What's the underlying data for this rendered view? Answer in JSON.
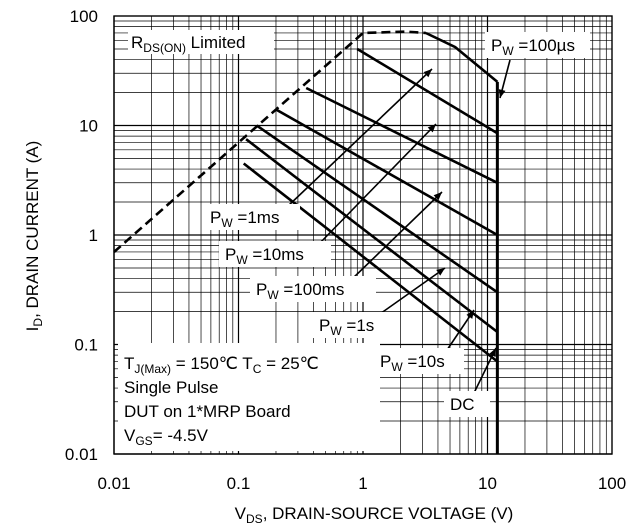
{
  "chart_data": {
    "type": "line",
    "xscale": "log",
    "yscale": "log",
    "xlim": [
      0.01,
      100
    ],
    "ylim": [
      0.01,
      100
    ],
    "grid": true,
    "xlabel": {
      "pre": "V",
      "sub": "DS",
      "post": ", DRAIN-SOURCE VOLTAGE (V)"
    },
    "ylabel": {
      "pre": "I",
      "sub": "D",
      "post": ", DRAIN CURRENT (A)"
    },
    "xticks": [
      {
        "v": 0.01,
        "label": "0.01"
      },
      {
        "v": 0.1,
        "label": "0.1"
      },
      {
        "v": 1,
        "label": "1"
      },
      {
        "v": 10,
        "label": "10"
      },
      {
        "v": 100,
        "label": "100"
      }
    ],
    "yticks": [
      {
        "v": 0.01,
        "label": "0.01"
      },
      {
        "v": 0.1,
        "label": "0.1"
      },
      {
        "v": 1,
        "label": "1"
      },
      {
        "v": 10,
        "label": "10"
      },
      {
        "v": 100,
        "label": "100"
      }
    ],
    "rds_limit": {
      "label_pre": "R",
      "label_sub": "DS(ON)",
      "label_post": " Limited",
      "points": [
        [
          0.01,
          0.7
        ],
        [
          1.0,
          70
        ],
        [
          2.2,
          72
        ],
        [
          3.2,
          70
        ]
      ]
    },
    "vmax": 12,
    "series": [
      {
        "label_pre": "P",
        "label_sub": "W",
        "label_post": " =100µs",
        "points": [
          [
            3.2,
            70
          ],
          [
            5.5,
            52
          ],
          [
            12,
            25
          ]
        ]
      },
      {
        "label_pre": "P",
        "label_sub": "W",
        "label_post": " =1ms",
        "points": [
          [
            0.9,
            50
          ],
          [
            12,
            8.5
          ]
        ]
      },
      {
        "label_pre": "P",
        "label_sub": "W",
        "label_post": " =10ms",
        "points": [
          [
            0.35,
            22
          ],
          [
            12,
            3
          ]
        ]
      },
      {
        "label_pre": "P",
        "label_sub": "W",
        "label_post": " =100ms",
        "points": [
          [
            0.2,
            14
          ],
          [
            12,
            1
          ]
        ]
      },
      {
        "label_pre": "P",
        "label_sub": "W",
        "label_post": " =1s",
        "points": [
          [
            0.14,
            10
          ],
          [
            12,
            0.3
          ]
        ]
      },
      {
        "label_pre": "P",
        "label_sub": "W",
        "label_post": " =10s",
        "points": [
          [
            0.115,
            7.5
          ],
          [
            12,
            0.13
          ]
        ]
      },
      {
        "label_pre": "",
        "label_sub": "",
        "label_post": "DC",
        "points": [
          [
            0.11,
            4.5
          ],
          [
            12,
            0.07
          ]
        ]
      }
    ],
    "annotations": [
      {
        "line": 1,
        "pre": "T",
        "sub": "J(Max)",
        "post": " = 150℃  T",
        "sub2": "C",
        "post2": " = 25℃"
      },
      {
        "line": 2,
        "text": "Single Pulse"
      },
      {
        "line": 3,
        "text": "DUT on 1*MRP Board"
      },
      {
        "line": 4,
        "pre": "V",
        "sub": "GS",
        "post": "= -4.5V"
      }
    ]
  }
}
